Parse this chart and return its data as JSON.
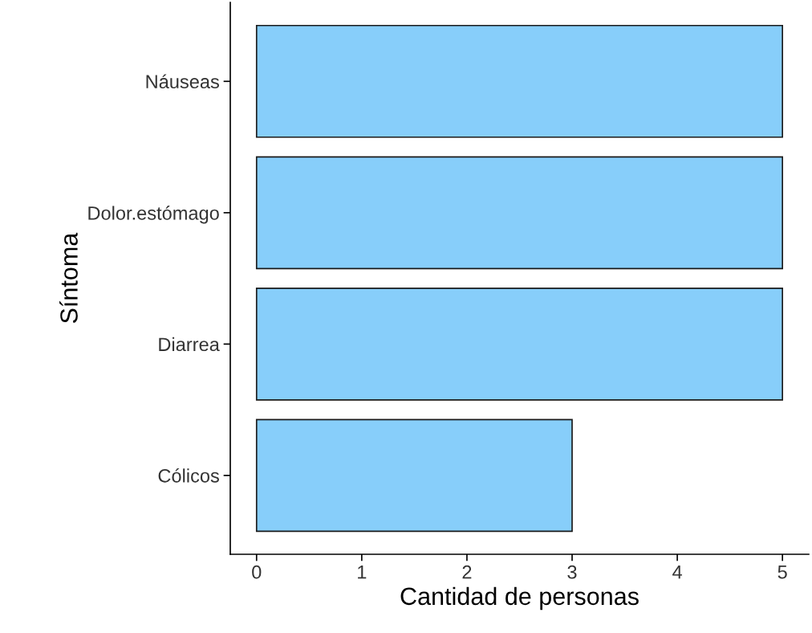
{
  "chart_data": {
    "type": "bar",
    "orientation": "horizontal",
    "xlabel": "Cantidad de personas",
    "ylabel": "Síntoma",
    "categories": [
      "Náuseas",
      "Dolor.estómago",
      "Diarrea",
      "Cólicos"
    ],
    "values": [
      5,
      5,
      5,
      3
    ],
    "color": "#87cefa",
    "xlim": [
      -0.25,
      5.25
    ],
    "xticks": [
      0,
      1,
      2,
      3,
      4,
      5
    ],
    "grid": false,
    "legend": false
  }
}
